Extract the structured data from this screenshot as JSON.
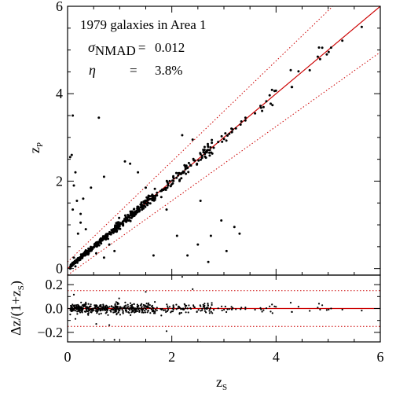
{
  "chart_data": {
    "type": "scatter",
    "title": "",
    "colors": {
      "points": "#000000",
      "one_to_one": "#cc0000",
      "outlier_bounds": "#cc0000"
    },
    "annotations": {
      "line1": "1979  galaxies in Area 1",
      "sigma_symbol": "σ",
      "sigma_sub": "NMAD",
      "sigma_eq": "=",
      "sigma_value": "0.012",
      "eta_symbol": "η",
      "eta_eq": "=",
      "eta_value": "3.8%"
    },
    "panels": [
      {
        "name": "main",
        "xlabel": "",
        "ylabel_main": "z",
        "ylabel_sub": "P",
        "xlim": [
          0,
          6
        ],
        "ylim": [
          -0.15,
          6.0
        ],
        "yticks": [
          0,
          2,
          4,
          6
        ],
        "lines": [
          {
            "kind": "one-to-one",
            "style": "solid",
            "x": [
              0,
              6
            ],
            "y": [
              0,
              6
            ]
          },
          {
            "kind": "upper-bound",
            "style": "dotted",
            "relation": "z_p = z_s + 0.15(1+z_s)"
          },
          {
            "kind": "lower-bound",
            "style": "dotted",
            "relation": "z_p = z_s - 0.15(1+z_s)"
          }
        ]
      },
      {
        "name": "residual",
        "xlabel_main": "z",
        "xlabel_sub": "S",
        "ylabel": "Δz/(1+z",
        "ylabel_sub": "S",
        "ylabel_end": ")",
        "xlim": [
          0,
          6
        ],
        "ylim": [
          -0.28,
          0.28
        ],
        "yticks": [
          -0.2,
          0.0,
          0.2
        ],
        "yticklabels": [
          "−0.2",
          "0.0",
          "0.2"
        ],
        "lines": [
          {
            "kind": "zero",
            "style": "solid",
            "y": 0.0
          },
          {
            "kind": "upper-bound",
            "style": "dotted",
            "y": 0.15
          },
          {
            "kind": "lower-bound",
            "style": "dotted",
            "y": -0.15
          }
        ]
      }
    ],
    "xticks": [
      0,
      2,
      4,
      6
    ],
    "outliers": {
      "x": [
        0.05,
        0.08,
        0.1,
        0.12,
        0.15,
        0.2,
        0.12,
        0.18,
        0.25,
        0.35,
        0.55,
        0.7,
        0.8,
        0.9,
        0.6,
        0.45,
        0.3,
        1.1,
        1.2,
        1.35,
        1.5,
        1.55,
        1.65,
        2.1,
        2.3,
        2.5,
        2.7,
        2.95,
        3.05,
        3.2,
        3.3,
        2.75,
        2.55,
        2.4,
        2.2,
        1.9,
        0.7,
        0.15,
        0.1,
        0.25
      ],
      "y": [
        2.55,
        2.6,
        1.35,
        0.25,
        2.2,
        0.8,
        1.9,
        1.55,
        1.25,
        0.9,
        0.35,
        0.25,
        0.55,
        0.4,
        3.45,
        1.85,
        1.6,
        2.45,
        2.4,
        2.2,
        1.85,
        1.5,
        0.3,
        0.75,
        0.3,
        0.55,
        0.15,
        1.1,
        0.4,
        0.95,
        0.8,
        0.75,
        1.55,
        2.95,
        3.05,
        1.35,
        2.1,
        0.05,
        3.5,
        1.05
      ]
    }
  }
}
